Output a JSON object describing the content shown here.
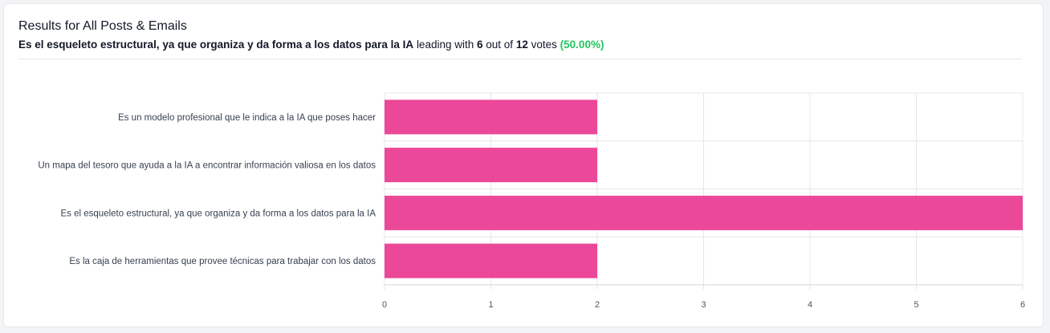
{
  "header": {
    "title": "Results for All Posts & Emails",
    "leader": "Es el esqueleto estructural, ya que organiza y da forma a los datos para la IA",
    "leading_with": "leading with",
    "votes_leading": "6",
    "out_of": "out of",
    "votes_total": "12",
    "votes_word": "votes",
    "percent": "(50.00%)"
  },
  "colors": {
    "bar": "#ec4899",
    "percent": "#22c55e",
    "grid": "#e5e7eb"
  },
  "chart_data": {
    "type": "bar",
    "orientation": "horizontal",
    "categories": [
      "Es un modelo profesional que le indica a la IA que poses hacer",
      "Un mapa del tesoro que ayuda a la IA a encontrar información valiosa en los datos",
      "Es el esqueleto estructural, ya que organiza y da forma a los datos para la IA",
      "Es la caja de herramientas que provee técnicas para trabajar con los datos"
    ],
    "values": [
      2,
      2,
      6,
      2
    ],
    "xlim": [
      0,
      6
    ],
    "xticks": [
      "0",
      "1",
      "2",
      "3",
      "4",
      "5",
      "6"
    ],
    "grid": true,
    "legend": "none"
  }
}
